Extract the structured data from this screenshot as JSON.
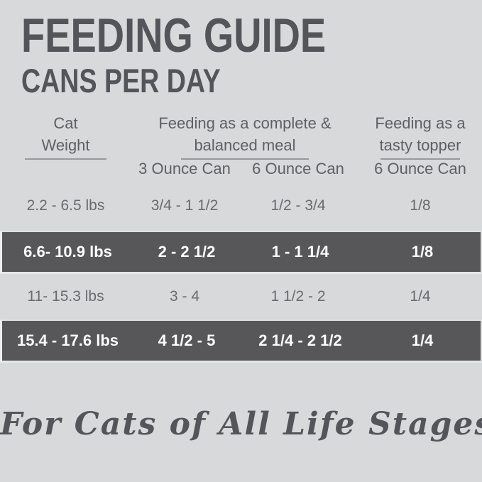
{
  "title": "FEEDING GUIDE",
  "subtitle": "CANS PER DAY",
  "table": {
    "column_groups": {
      "weight": {
        "line1": "Cat",
        "line2": "Weight"
      },
      "meal": {
        "line1": "Feeding as a complete &",
        "line2": "balanced meal"
      },
      "topper": {
        "line1": "Feeding as a",
        "line2": "tasty topper"
      }
    },
    "subheaders": {
      "can3": "3 Ounce Can",
      "can6": "6 Ounce Can",
      "topper6": "6 Ounce Can"
    },
    "rows": [
      {
        "weight": "2.2 - 6.5 lbs",
        "can3": "3/4 - 1 1/2",
        "can6": "1/2 - 3/4",
        "topper": "1/8"
      },
      {
        "weight": "6.6- 10.9 lbs",
        "can3": "2 - 2 1/2",
        "can6": "1 - 1 1/4",
        "topper": "1/8"
      },
      {
        "weight": "11- 15.3 lbs",
        "can3": "3 - 4",
        "can6": "1 1/2 - 2",
        "topper": "1/4"
      },
      {
        "weight": "15.4 - 17.6 lbs",
        "can3": "4 1/2 - 5",
        "can6": "2 1/4 - 2 1/2",
        "topper": "1/4"
      }
    ]
  },
  "footer": {
    "tagline": "For Cats of All Life Stages"
  },
  "colors": {
    "background": "#d8d9da",
    "dark_band": "#57575a",
    "title_text": "#54555a",
    "header_text": "#5e6064",
    "body_text": "#696b6f",
    "dark_band_text": "#fcfcfd",
    "underline": "#98999c"
  }
}
